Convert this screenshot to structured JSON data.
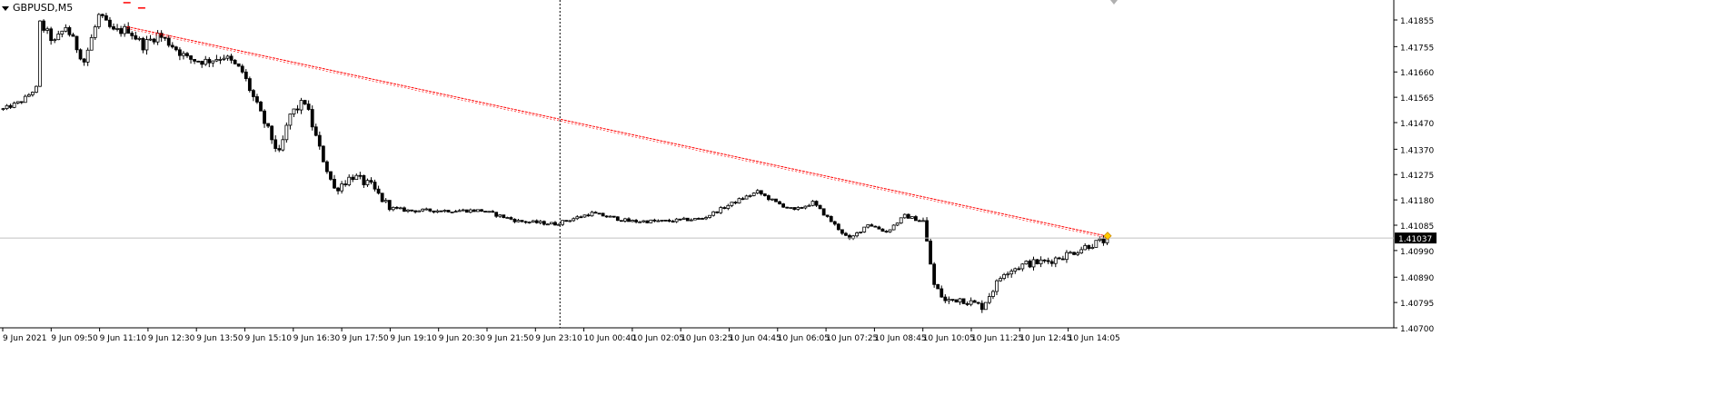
{
  "window": {
    "symbol_label": "GBPUSD,M5",
    "menu_icon": "triangle-down-icon"
  },
  "colors": {
    "background": "#ffffff",
    "candle": "#000000",
    "trendline": "#ff0000",
    "price_line": "#c0c0c0",
    "price_badge_bg": "#000000",
    "price_badge_fg": "#ffffff",
    "vertical_separator": "#000000",
    "axis_text": "#000000",
    "axis_line": "#000000"
  },
  "chart_data": {
    "type": "candlestick",
    "symbol": "GBPUSD",
    "timeframe": "M5",
    "current_price": "1.41037",
    "ylim": [
      1.407,
      1.4193
    ],
    "y_ticks": [
      "1.41855",
      "1.41755",
      "1.41660",
      "1.41565",
      "1.41470",
      "1.41370",
      "1.41275",
      "1.41180",
      "1.41085",
      "1.40990",
      "1.40890",
      "1.40795",
      "1.40700"
    ],
    "x_ticks": [
      "9 Jun 2021",
      "9 Jun 09:50",
      "9 Jun 11:10",
      "9 Jun 12:30",
      "9 Jun 13:50",
      "9 Jun 15:10",
      "9 Jun 16:30",
      "9 Jun 17:50",
      "9 Jun 19:10",
      "9 Jun 20:30",
      "9 Jun 21:50",
      "9 Jun 23:10",
      "10 Jun 00:40",
      "10 Jun 02:05",
      "10 Jun 03:25",
      "10 Jun 04:45",
      "10 Jun 06:05",
      "10 Jun 07:25",
      "10 Jun 08:45",
      "10 Jun 10:05",
      "10 Jun 11:25",
      "10 Jun 12:45",
      "10 Jun 14:05"
    ],
    "price_path_anchors": [
      [
        0,
        1.4152
      ],
      [
        5,
        1.4155
      ],
      [
        9,
        1.416
      ],
      [
        10,
        1.4184
      ],
      [
        14,
        1.4177
      ],
      [
        17,
        1.4183
      ],
      [
        22,
        1.417
      ],
      [
        26,
        1.4187
      ],
      [
        30,
        1.4181
      ],
      [
        34,
        1.4182
      ],
      [
        38,
        1.4176
      ],
      [
        42,
        1.418
      ],
      [
        46,
        1.4176
      ],
      [
        50,
        1.4171
      ],
      [
        55,
        1.417
      ],
      [
        60,
        1.4172
      ],
      [
        65,
        1.4166
      ],
      [
        70,
        1.415
      ],
      [
        75,
        1.4135
      ],
      [
        78,
        1.415
      ],
      [
        82,
        1.4155
      ],
      [
        86,
        1.4137
      ],
      [
        90,
        1.4122
      ],
      [
        95,
        1.4127
      ],
      [
        100,
        1.4123
      ],
      [
        105,
        1.4115
      ],
      [
        110,
        1.4114
      ],
      [
        120,
        1.4114
      ],
      [
        130,
        1.4114
      ],
      [
        140,
        1.411
      ],
      [
        150,
        1.4109
      ],
      [
        160,
        1.4113
      ],
      [
        170,
        1.411
      ],
      [
        180,
        1.411
      ],
      [
        190,
        1.4111
      ],
      [
        200,
        1.4118
      ],
      [
        205,
        1.4121
      ],
      [
        210,
        1.4117
      ],
      [
        215,
        1.4114
      ],
      [
        220,
        1.4117
      ],
      [
        225,
        1.411
      ],
      [
        230,
        1.4103
      ],
      [
        235,
        1.4109
      ],
      [
        240,
        1.4106
      ],
      [
        245,
        1.4112
      ],
      [
        250,
        1.411
      ],
      [
        253,
        1.4086
      ],
      [
        256,
        1.408
      ],
      [
        260,
        1.4081
      ],
      [
        266,
        1.4078
      ],
      [
        272,
        1.4091
      ],
      [
        278,
        1.4094
      ],
      [
        284,
        1.4095
      ],
      [
        290,
        1.4098
      ],
      [
        295,
        1.4101
      ],
      [
        300,
        1.4103
      ]
    ],
    "trendline": {
      "start": {
        "bar": 34,
        "price": 1.4183
      },
      "end": {
        "bar": 300,
        "price": 1.41045
      }
    },
    "vertical_marker_label": "9 Jun 23:10",
    "annotations": [
      {
        "type": "dash",
        "bar": 34,
        "price": 1.4192
      },
      {
        "type": "dash",
        "bar": 38,
        "price": 1.419
      },
      {
        "type": "arrow-marker",
        "bar": 300,
        "price": 1.41045
      }
    ]
  }
}
